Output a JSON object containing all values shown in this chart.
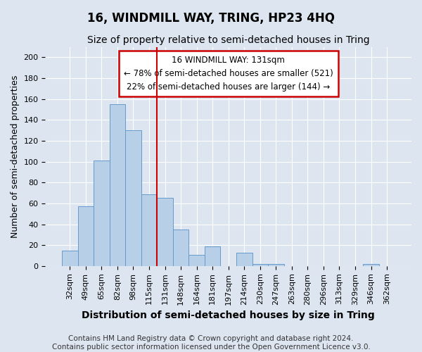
{
  "title": "16, WINDMILL WAY, TRING, HP23 4HQ",
  "subtitle": "Size of property relative to semi-detached houses in Tring",
  "xlabel": "Distribution of semi-detached houses by size in Tring",
  "ylabel": "Number of semi-detached properties",
  "categories": [
    "32sqm",
    "49sqm",
    "65sqm",
    "82sqm",
    "98sqm",
    "115sqm",
    "131sqm",
    "148sqm",
    "164sqm",
    "181sqm",
    "197sqm",
    "214sqm",
    "230sqm",
    "247sqm",
    "263sqm",
    "280sqm",
    "296sqm",
    "313sqm",
    "329sqm",
    "346sqm",
    "362sqm"
  ],
  "values": [
    15,
    57,
    101,
    155,
    130,
    69,
    65,
    35,
    11,
    19,
    0,
    13,
    2,
    2,
    0,
    0,
    0,
    0,
    0,
    2,
    0
  ],
  "bar_color": "#b8cfe8",
  "bar_edge_color": "#6699cc",
  "red_line_index": 6,
  "ylim": [
    0,
    210
  ],
  "yticks": [
    0,
    20,
    40,
    60,
    80,
    100,
    120,
    140,
    160,
    180,
    200
  ],
  "annotation_text": "16 WINDMILL WAY: 131sqm\n← 78% of semi-detached houses are smaller (521)\n22% of semi-detached houses are larger (144) →",
  "annotation_box_facecolor": "#ffffff",
  "annotation_box_edgecolor": "#cc0000",
  "footer1": "Contains HM Land Registry data © Crown copyright and database right 2024.",
  "footer2": "Contains public sector information licensed under the Open Government Licence v3.0.",
  "bg_color": "#dde6f0",
  "plot_bg_color": "#dde6f0",
  "grid_color": "#ffffff",
  "title_fontsize": 12,
  "subtitle_fontsize": 10,
  "axis_label_fontsize": 9,
  "tick_fontsize": 8,
  "annotation_fontsize": 8.5,
  "footer_fontsize": 7.5
}
